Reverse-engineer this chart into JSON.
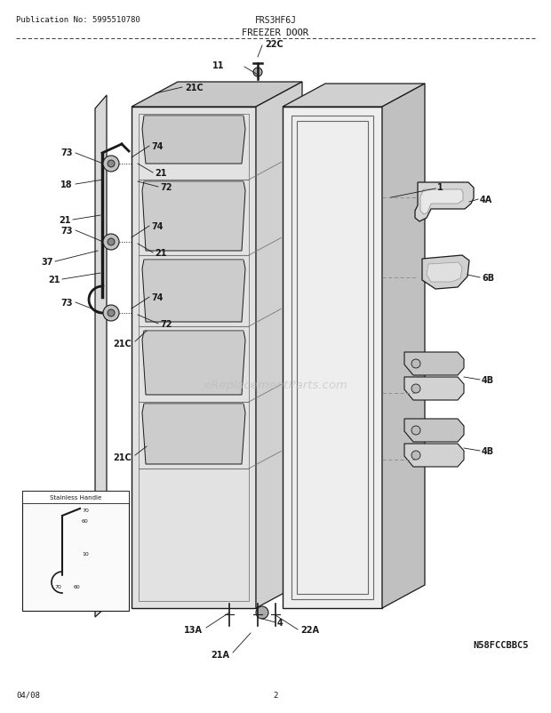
{
  "title_left": "Publication No: 5995510780",
  "title_center": "FRS3HF6J",
  "title_section": "FREEZER DOOR",
  "footer_left": "04/08",
  "footer_center": "2",
  "diagram_id": "N58FCCBBC5",
  "bg_color": "#ffffff",
  "line_color": "#1a1a1a",
  "watermark": "eReplacementParts.com",
  "watermark_color": "#bbbbbb"
}
